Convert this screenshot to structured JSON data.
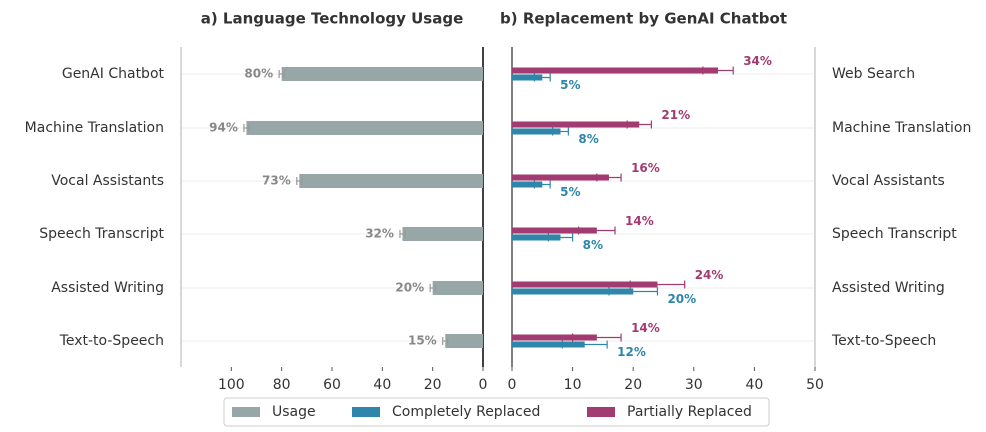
{
  "chart_data": [
    {
      "type": "bar",
      "orientation": "horizontal",
      "title": "a) Language Technology Usage",
      "categories": [
        "GenAI Chatbot",
        "Machine Translation",
        "Vocal Assistants",
        "Speech Transcript",
        "Assisted Writing",
        "Text-to-Speech"
      ],
      "series": [
        {
          "name": "Usage",
          "color": "#97a6a6",
          "values": [
            80,
            94,
            73,
            32,
            20,
            15
          ],
          "errors": [
            1,
            1,
            1,
            1,
            1,
            1
          ],
          "value_labels": [
            "80%",
            "94%",
            "73%",
            "32%",
            "20%",
            "15%"
          ]
        }
      ],
      "xlim": [
        0,
        120
      ],
      "x_reversed": true,
      "xticks": [
        0,
        20,
        40,
        60,
        80,
        100
      ],
      "grid": true,
      "category_side": "left"
    },
    {
      "type": "bar",
      "orientation": "horizontal",
      "title": "b) Replacement by GenAI Chatbot",
      "categories": [
        "Web Search",
        "Machine Translation",
        "Vocal Assistants",
        "Speech Transcript",
        "Assisted Writing",
        "Text-to-Speech"
      ],
      "series": [
        {
          "name": "Completely Replaced",
          "color": "#2e86ab",
          "values": [
            5,
            8,
            5,
            8,
            20,
            12
          ],
          "errors": [
            1.3,
            1.3,
            1.3,
            2,
            4,
            3.7
          ],
          "value_labels": [
            "5%",
            "8%",
            "5%",
            "8%",
            "20%",
            "12%"
          ]
        },
        {
          "name": "Partially Replaced",
          "color": "#a23b72",
          "values": [
            34,
            21,
            16,
            14,
            24,
            14
          ],
          "errors": [
            2.5,
            2,
            2,
            3,
            4.5,
            4
          ],
          "value_labels": [
            "34%",
            "21%",
            "16%",
            "14%",
            "24%",
            "14%"
          ]
        }
      ],
      "xlim": [
        0,
        50
      ],
      "xticks": [
        0,
        10,
        20,
        30,
        40,
        50
      ],
      "grid": true,
      "category_side": "right"
    }
  ]
}
